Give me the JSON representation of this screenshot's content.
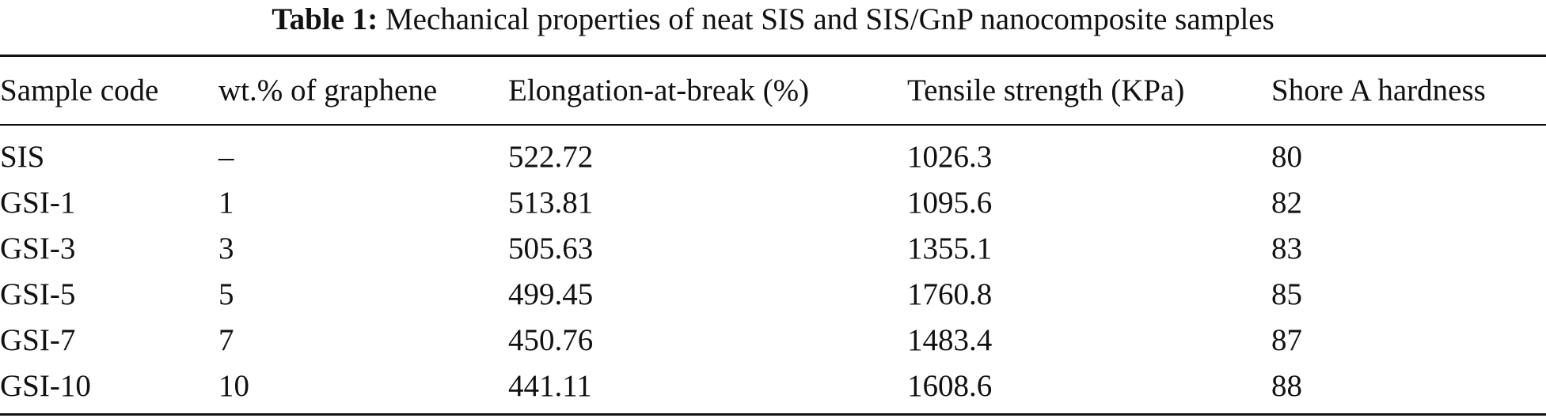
{
  "table": {
    "caption_label": "Table 1:",
    "caption_text": "Mechanical properties of neat SIS and SIS/GnP nanocomposite samples",
    "headers": [
      "Sample code",
      "wt.% of graphene",
      "Elongation-at-break (%)",
      "Tensile strength (KPa)",
      "Shore A hardness"
    ],
    "rows": [
      [
        "SIS",
        "–",
        "522.72",
        "1026.3",
        "80"
      ],
      [
        "GSI-1",
        "1",
        "513.81",
        "1095.6",
        "82"
      ],
      [
        "GSI-3",
        "3",
        "505.63",
        "1355.1",
        "83"
      ],
      [
        "GSI-5",
        "5",
        "499.45",
        "1760.8",
        "85"
      ],
      [
        "GSI-7",
        "7",
        "450.76",
        "1483.4",
        "87"
      ],
      [
        "GSI-10",
        "10",
        "441.11",
        "1608.6",
        "88"
      ]
    ]
  }
}
